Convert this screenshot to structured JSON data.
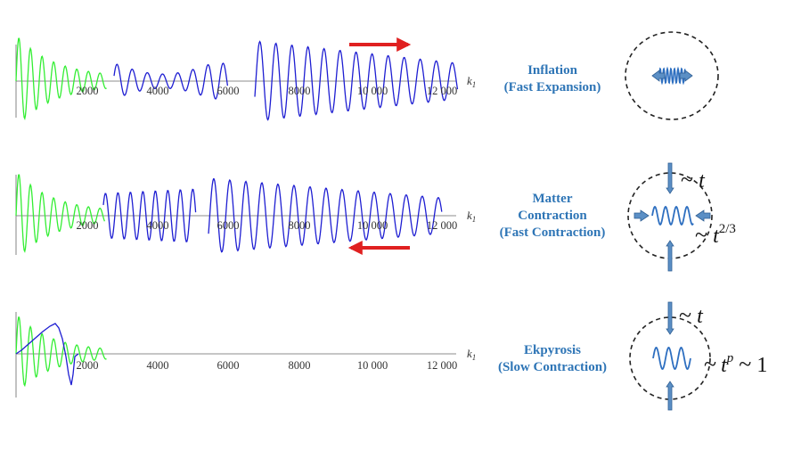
{
  "panels": [
    {
      "id": "inflation",
      "label_lines": [
        "Inflation",
        "(Fast Expansion)"
      ],
      "arrow_direction": "right",
      "tick_labels": [
        "2000",
        "4000",
        "6000",
        "8000",
        "10 000",
        "12 000"
      ],
      "axis_label": "k",
      "axis_subscript": "1",
      "scaling": []
    },
    {
      "id": "matter",
      "label_lines": [
        "Matter",
        "Contraction",
        "(Fast Contraction)"
      ],
      "arrow_direction": "left",
      "tick_labels": [
        "2000",
        "4000",
        "6000",
        "8000",
        "10 000",
        "12 000"
      ],
      "axis_label": "k",
      "axis_subscript": "1",
      "scaling": [
        "~ t",
        "~ t^{2/3}"
      ]
    },
    {
      "id": "ekpyrosis",
      "label_lines": [
        "Ekpyrosis",
        "(Slow Contraction)"
      ],
      "arrow_direction": "",
      "tick_labels": [
        "2000",
        "4000",
        "6000",
        "8000",
        "10 000",
        "12 000"
      ],
      "axis_label": "k",
      "axis_subscript": "1",
      "scaling": [
        "~ t",
        "~ t^p ~ 1"
      ]
    }
  ],
  "colors": {
    "green_wave": "#33ee33",
    "blue_wave": "#1e1ed2",
    "label_blue": "#2e75b6",
    "red_arrow": "#e02020",
    "icon_fill": "#5b8fc5",
    "icon_stroke": "#2f5f94"
  }
}
